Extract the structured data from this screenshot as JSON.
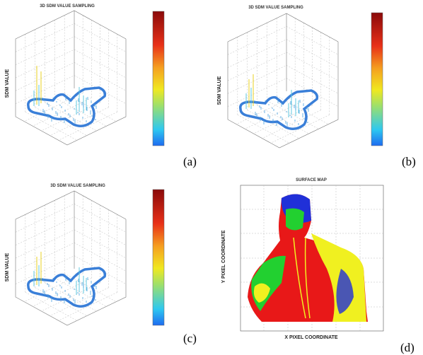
{
  "panels": [
    {
      "title": "3D SDM VALUE SAMPLING",
      "z_label": "SDM VALUE",
      "label": "(a)"
    },
    {
      "title": "3D SDM VALUE SAMPLING",
      "z_label": "SDM VALUE",
      "label": "(b)"
    },
    {
      "title": "3D SDM VALUE SAMPLING",
      "z_label": "SDM VALUE",
      "label": "(c)"
    },
    {
      "title": "SURFACE MAP",
      "x_label": "X PIXEL COORDINATE",
      "y_label": "Y PIXEL COORDINATE",
      "label": "(d)"
    }
  ]
}
